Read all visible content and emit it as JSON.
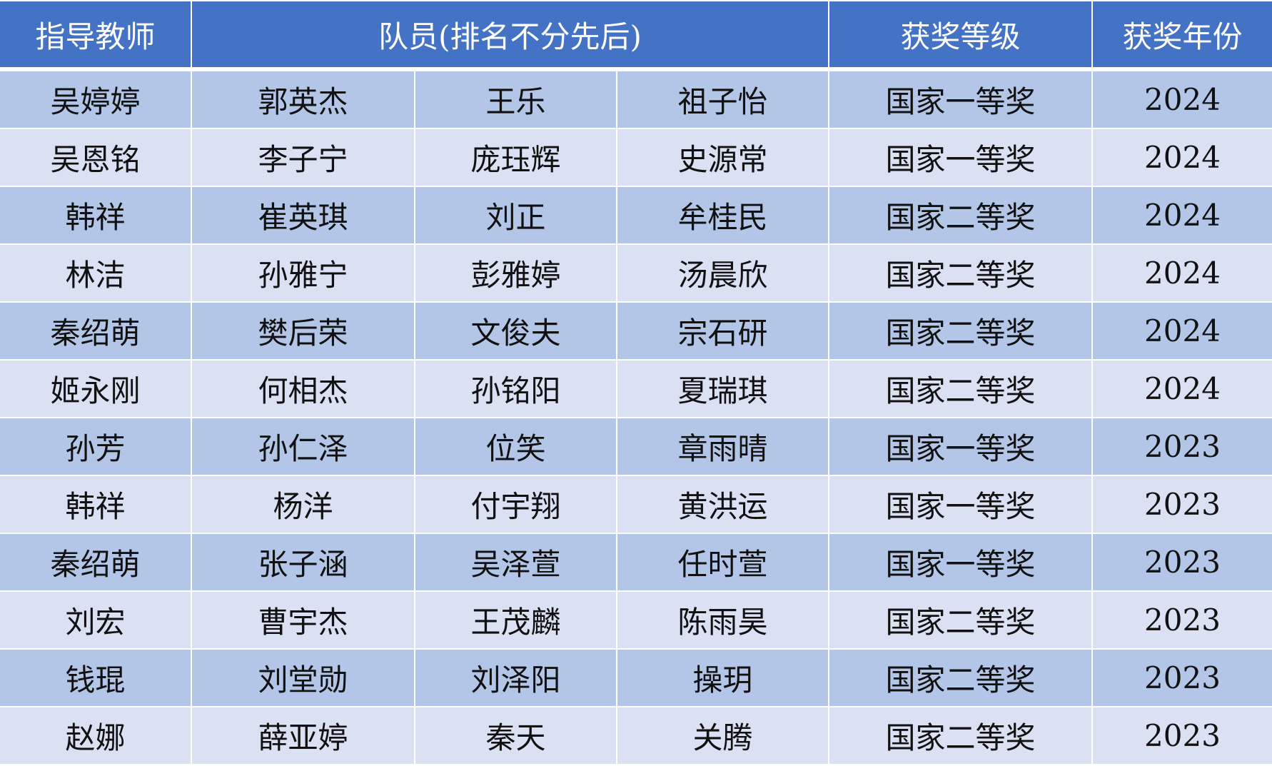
{
  "header": {
    "teacher": "指导教师",
    "members": "队员(排名不分先后)",
    "award_level": "获奖等级",
    "award_year": "获奖年份"
  },
  "colors": {
    "header_bg": "#4472C4",
    "row_dark": "#B4C6E7",
    "row_light": "#D9E1F2"
  },
  "rows": [
    {
      "teacher": "吴婷婷",
      "m1": "郭英杰",
      "m2": "王乐",
      "m3": "祖子怡",
      "level": "国家一等奖",
      "year": "2024"
    },
    {
      "teacher": "吴恩铭",
      "m1": "李子宁",
      "m2": "庞珏辉",
      "m3": "史源常",
      "level": "国家一等奖",
      "year": "2024"
    },
    {
      "teacher": "韩祥",
      "m1": "崔英琪",
      "m2": "刘正",
      "m3": "牟桂民",
      "level": "国家二等奖",
      "year": "2024"
    },
    {
      "teacher": "林洁",
      "m1": "孙雅宁",
      "m2": "彭雅婷",
      "m3": "汤晨欣",
      "level": "国家二等奖",
      "year": "2024"
    },
    {
      "teacher": "秦绍萌",
      "m1": "樊后荣",
      "m2": "文俊夫",
      "m3": "宗石研",
      "level": "国家二等奖",
      "year": "2024"
    },
    {
      "teacher": "姬永刚",
      "m1": "何相杰",
      "m2": "孙铭阳",
      "m3": "夏瑞琪",
      "level": "国家二等奖",
      "year": "2024"
    },
    {
      "teacher": "孙芳",
      "m1": "孙仁泽",
      "m2": "位笑",
      "m3": "章雨晴",
      "level": "国家一等奖",
      "year": "2023"
    },
    {
      "teacher": "韩祥",
      "m1": "杨洋",
      "m2": "付宇翔",
      "m3": "黄洪运",
      "level": "国家一等奖",
      "year": "2023"
    },
    {
      "teacher": "秦绍萌",
      "m1": "张子涵",
      "m2": "吴泽萱",
      "m3": "任时萱",
      "level": "国家一等奖",
      "year": "2023"
    },
    {
      "teacher": "刘宏",
      "m1": "曹宇杰",
      "m2": "王茂麟",
      "m3": "陈雨昊",
      "level": "国家二等奖",
      "year": "2023"
    },
    {
      "teacher": "钱琨",
      "m1": "刘堂勋",
      "m2": "刘泽阳",
      "m3": "操玥",
      "level": "国家二等奖",
      "year": "2023"
    },
    {
      "teacher": "赵娜",
      "m1": "薛亚婷",
      "m2": "秦天",
      "m3": "关腾",
      "level": "国家二等奖",
      "year": "2023"
    }
  ]
}
